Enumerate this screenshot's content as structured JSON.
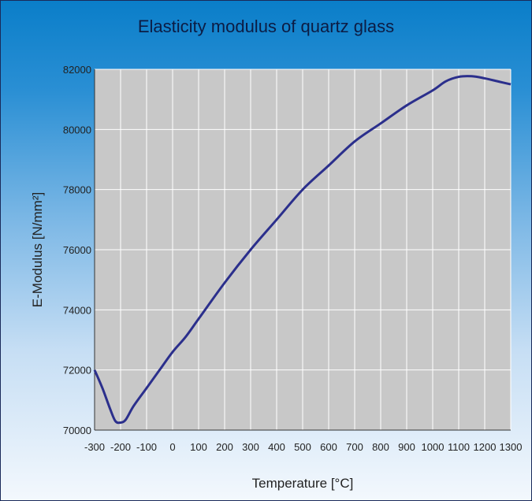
{
  "chart_data": {
    "type": "line",
    "title": "Elasticity modulus of quartz glass",
    "xlabel": "Temperature [°C]",
    "ylabel": "E-Modulus [N/mm²]",
    "xlim": [
      -300,
      1300
    ],
    "ylim": [
      70000,
      82000
    ],
    "x_ticks": [
      "-300",
      "-200",
      "-100",
      "0",
      "100",
      "200",
      "300",
      "400",
      "500",
      "600",
      "700",
      "800",
      "900",
      "1000",
      "1100",
      "1200",
      "1300"
    ],
    "y_ticks": [
      "70000",
      "72000",
      "74000",
      "76000",
      "78000",
      "80000",
      "82000"
    ],
    "grid": true,
    "line_color": "#2b2f8c",
    "plot_background": "#c8c8c8",
    "series": [
      {
        "x": [
          -300,
          -270,
          -240,
          -220,
          -200,
          -180,
          -150,
          -100,
          -50,
          0,
          50,
          100,
          200,
          300,
          400,
          500,
          600,
          700,
          800,
          900,
          1000,
          1050,
          1100,
          1150,
          1200,
          1250,
          1300
        ],
        "values": [
          72000,
          71400,
          70700,
          70300,
          70250,
          70350,
          70800,
          71400,
          72000,
          72600,
          73100,
          73700,
          74900,
          76000,
          77000,
          78000,
          78800,
          79600,
          80200,
          80800,
          81300,
          81600,
          81750,
          81770,
          81700,
          81600,
          81500
        ]
      }
    ]
  }
}
